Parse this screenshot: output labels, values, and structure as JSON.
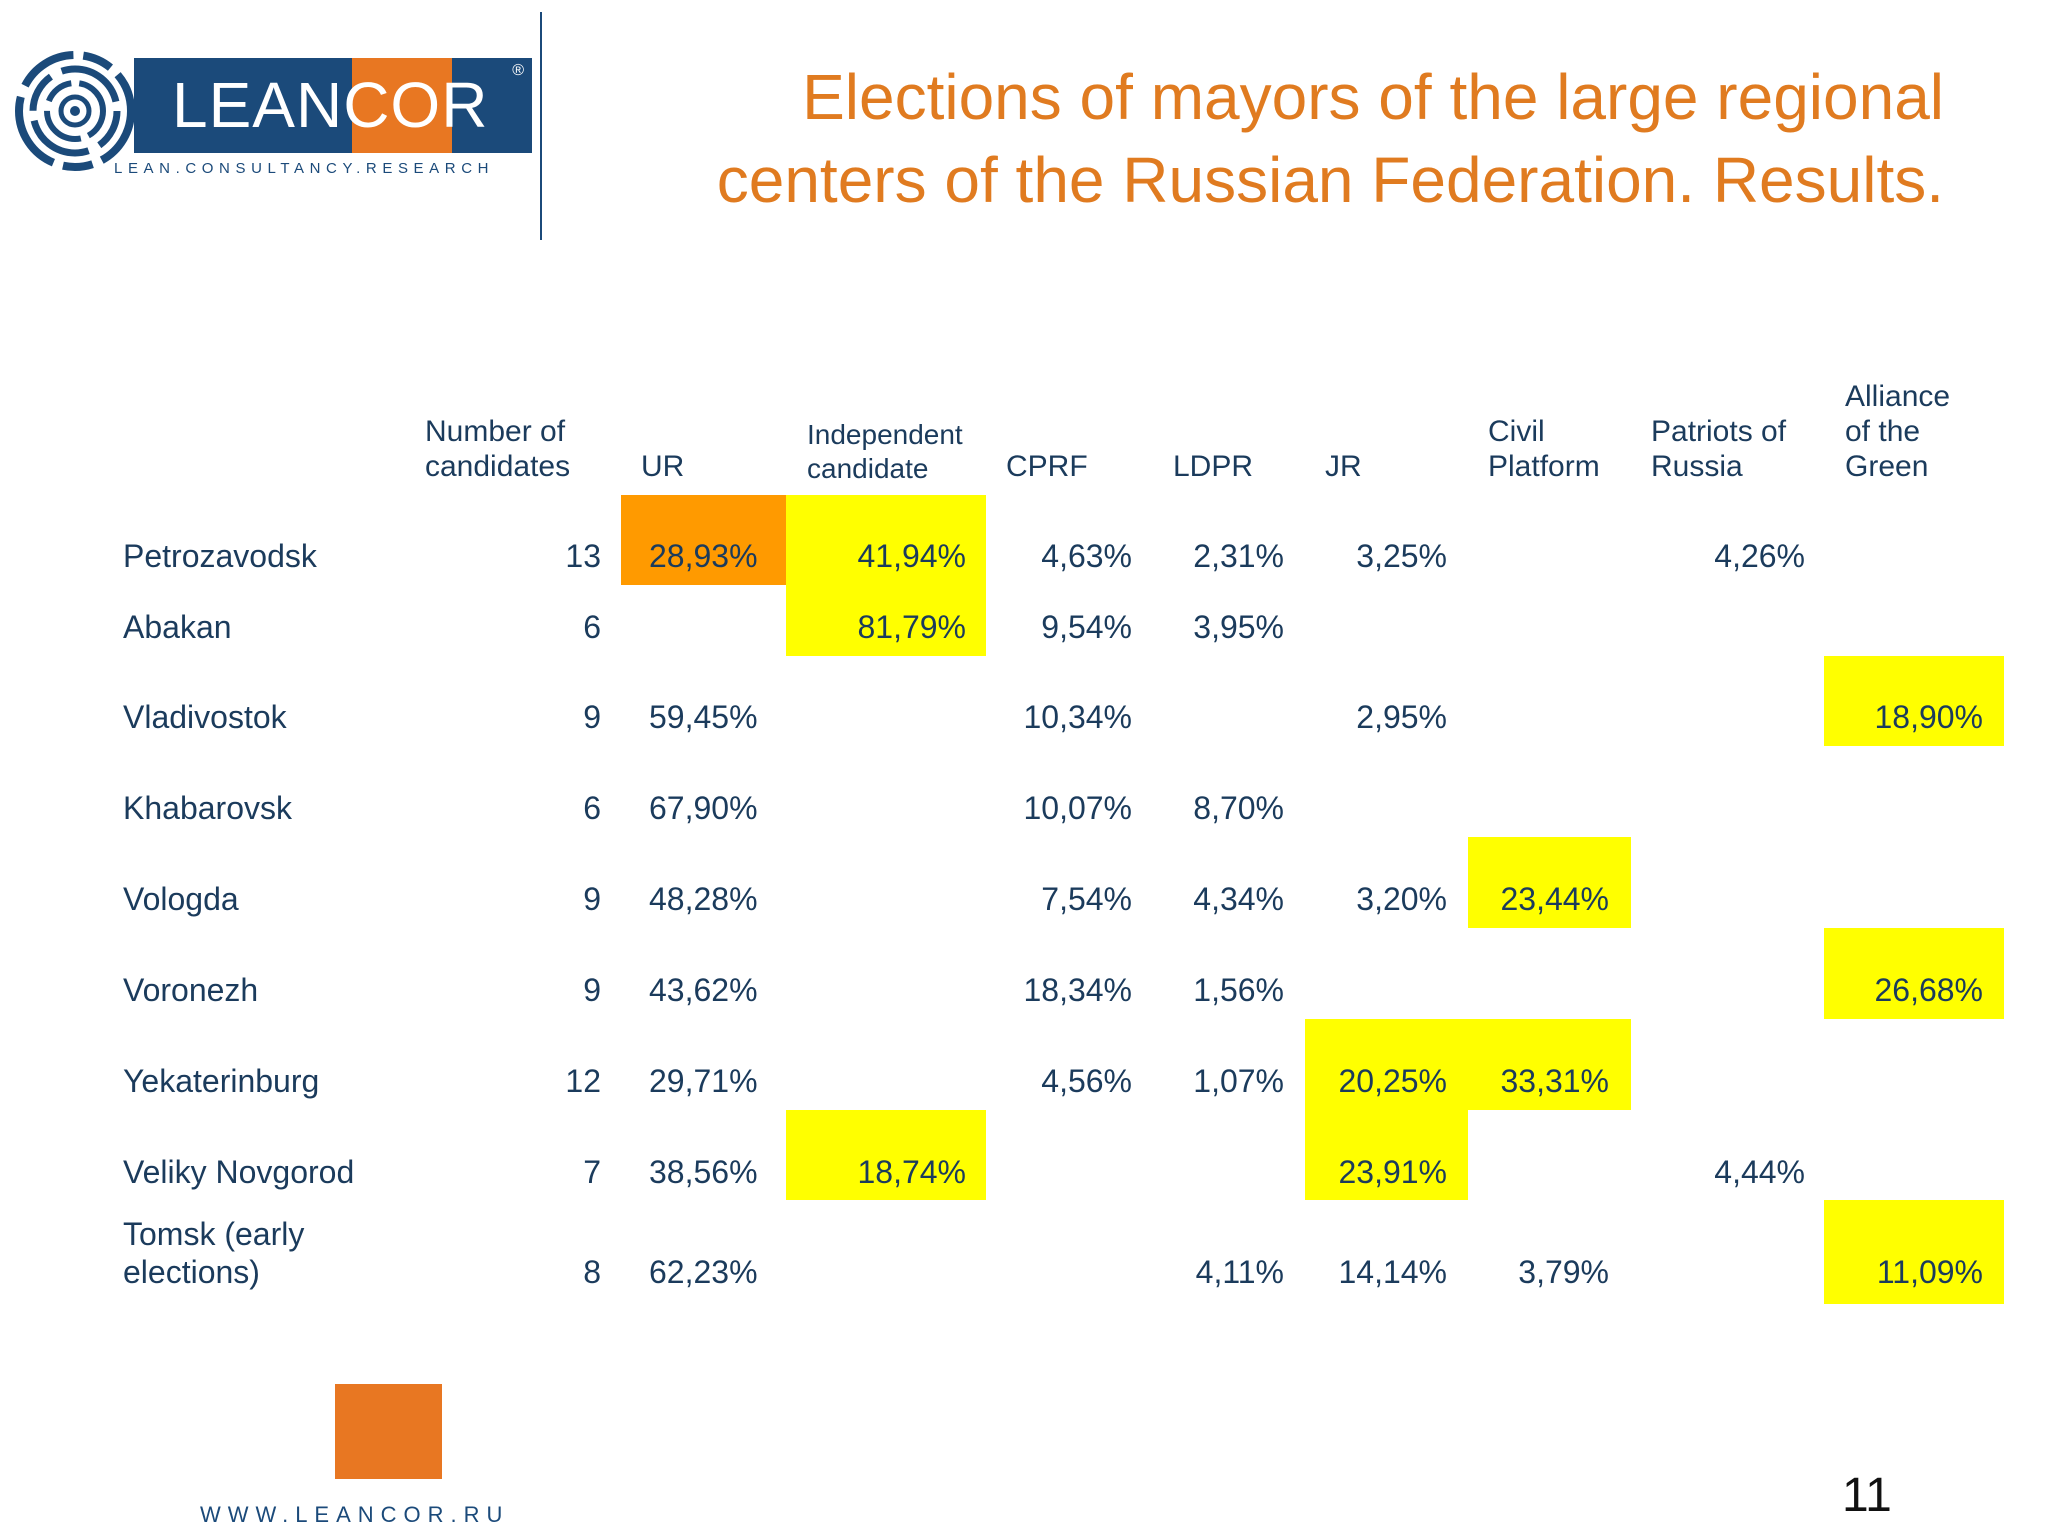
{
  "logo": {
    "brand": "LEANCOR",
    "registered_mark": "®",
    "tagline": "LEAN.CONSULTANCY.RESEARCH"
  },
  "title": {
    "line1": "Elections of mayors of the large regional",
    "line2": "centers of the Russian Federation. Results."
  },
  "table": {
    "headers": {
      "candidates": [
        "Number of",
        "candidates"
      ],
      "ur": "UR",
      "independent": [
        "Independent",
        "candidate"
      ],
      "cprf": "CPRF",
      "ldpr": "LDPR",
      "jr": "JR",
      "civil": [
        "Civil",
        "Platform"
      ],
      "patriots": [
        "Patriots of",
        "Russia"
      ],
      "alliance": [
        "Alliance",
        "of the",
        "Green"
      ]
    },
    "rows": [
      {
        "city": "Petrozavodsk",
        "candidates": "13",
        "ur": "28,93%",
        "independent": "41,94%",
        "cprf": "4,63%",
        "ldpr": "2,31%",
        "jr": "3,25%",
        "civil": "",
        "patriots": "4,26%",
        "alliance": ""
      },
      {
        "city": "Abakan",
        "candidates": "6",
        "ur": "",
        "independent": "81,79%",
        "cprf": "9,54%",
        "ldpr": "3,95%",
        "jr": "",
        "civil": "",
        "patriots": "",
        "alliance": ""
      },
      {
        "city": "Vladivostok",
        "candidates": "9",
        "ur": "59,45%",
        "independent": "",
        "cprf": "10,34%",
        "ldpr": "",
        "jr": "2,95%",
        "civil": "",
        "patriots": "",
        "alliance": "18,90%"
      },
      {
        "city": "Khabarovsk",
        "candidates": "6",
        "ur": "67,90%",
        "independent": "",
        "cprf": "10,07%",
        "ldpr": "8,70%",
        "jr": "",
        "civil": "",
        "patriots": "",
        "alliance": ""
      },
      {
        "city": "Vologda",
        "candidates": "9",
        "ur": "48,28%",
        "independent": "",
        "cprf": "7,54%",
        "ldpr": "4,34%",
        "jr": "3,20%",
        "civil": "23,44%",
        "patriots": "",
        "alliance": ""
      },
      {
        "city": "Voronezh",
        "candidates": "9",
        "ur": "43,62%",
        "independent": "",
        "cprf": "18,34%",
        "ldpr": "1,56%",
        "jr": "",
        "civil": "",
        "patriots": "",
        "alliance": "26,68%"
      },
      {
        "city": "Yekaterinburg",
        "candidates": "12",
        "ur": "29,71%",
        "independent": "",
        "cprf": "4,56%",
        "ldpr": "1,07%",
        "jr": "20,25%",
        "civil": "33,31%",
        "patriots": "",
        "alliance": ""
      },
      {
        "city": "Veliky Novgorod",
        "candidates": "7",
        "ur": "38,56%",
        "independent": "18,74%",
        "cprf": "",
        "ldpr": "",
        "jr": "23,91%",
        "civil": "",
        "patriots": "4,44%",
        "alliance": ""
      },
      {
        "city_lines": [
          "Tomsk (early",
          "elections)"
        ],
        "candidates": "8",
        "ur": "62,23%",
        "independent": "",
        "cprf": "",
        "ldpr": "4,11%",
        "jr": "14,14%",
        "civil": "3,79%",
        "patriots": "",
        "alliance": "11,09%"
      }
    ],
    "highlight_colors": {
      "yellow": "#ffff00",
      "orange": "#ff9a00"
    }
  },
  "footer": {
    "url": "WWW.LEANCOR.RU",
    "page_number": "11"
  },
  "colors": {
    "brand_blue": "#1b4a7a",
    "brand_orange": "#e87722",
    "title_orange": "#e07b20"
  }
}
